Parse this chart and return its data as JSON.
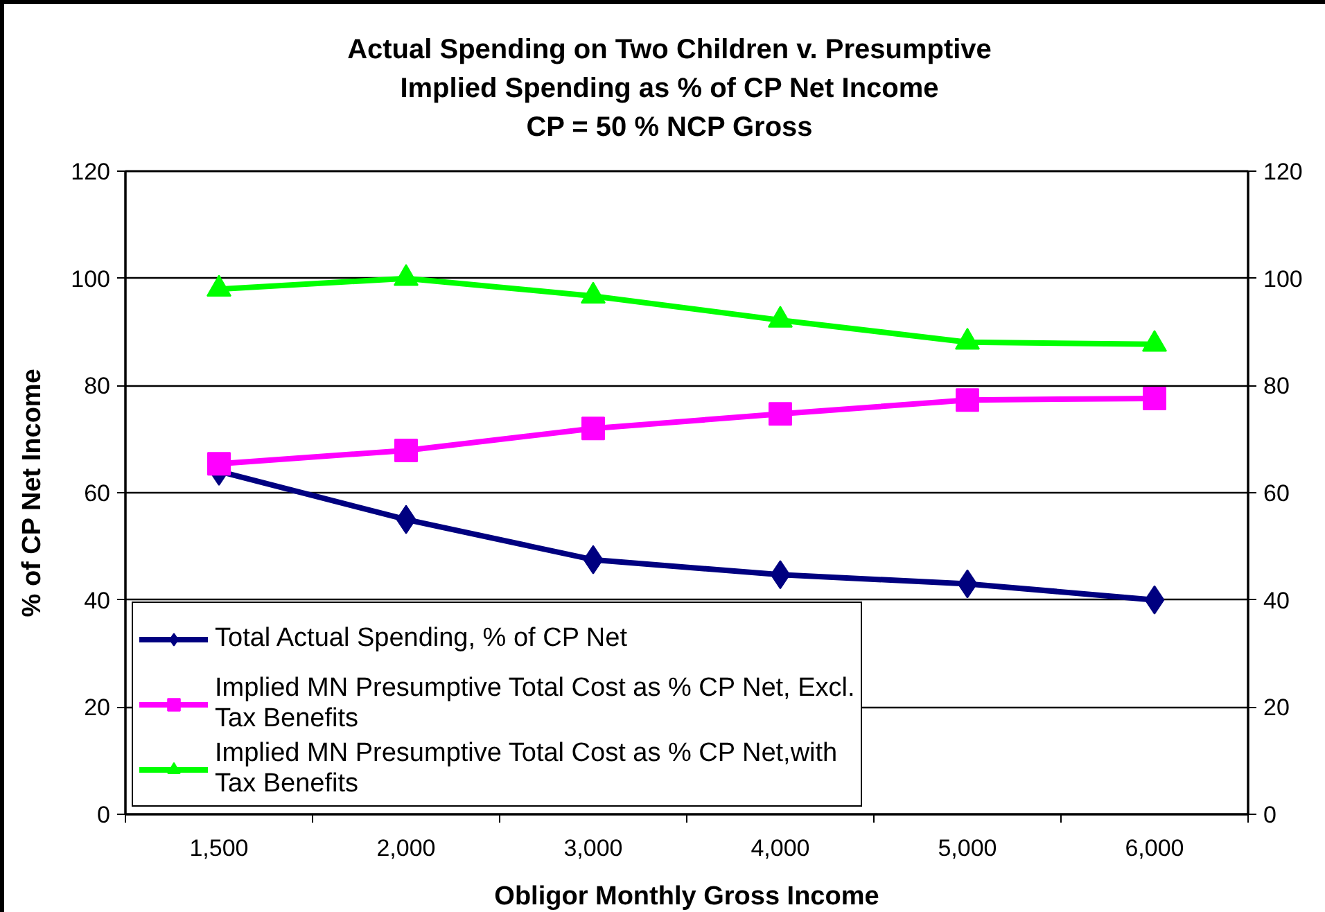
{
  "chart_data": {
    "type": "line",
    "title": "Actual Spending on Two Children v. Presumptive\nImplied Spending as % of CP Net Income\nCP = 50 % NCP Gross",
    "xlabel": "Obligor Monthly Gross Income",
    "ylabel": "% of CP Net Income",
    "categories": [
      "1,500",
      "2,000",
      "3,000",
      "4,000",
      "5,000",
      "6,000"
    ],
    "series": [
      {
        "name": "Total Actual Spending, % of CP Net",
        "color": "#000080",
        "marker": "diamond",
        "values": [
          64,
          55,
          47.5,
          44.7,
          43,
          40
        ]
      },
      {
        "name": "Implied MN Presumptive Total Cost as % CP Net, Excl. Tax Benefits",
        "color": "#ff00ff",
        "marker": "square",
        "values": [
          65.4,
          67.9,
          72,
          74.7,
          77.3,
          77.6
        ]
      },
      {
        "name": "Implied MN Presumptive Total Cost as % CP Net,with Tax Benefits",
        "color": "#00ff00",
        "marker": "triangle",
        "values": [
          98,
          100,
          96.7,
          92.2,
          88.1,
          87.7
        ]
      }
    ],
    "ylim": [
      0,
      120
    ],
    "yticks": [
      0,
      20,
      40,
      60,
      80,
      100,
      120
    ],
    "y2lim": [
      0,
      120
    ],
    "y2ticks": [
      0,
      20,
      40,
      60,
      80,
      100,
      120
    ],
    "grid": "y",
    "legend": "bottom left",
    "line_style": "solid"
  }
}
